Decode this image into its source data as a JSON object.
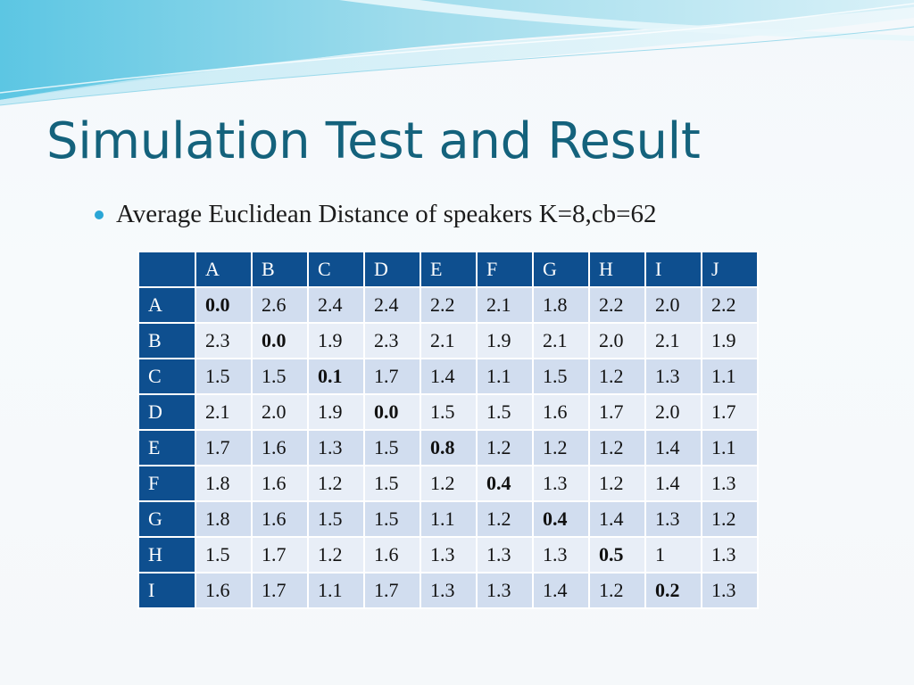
{
  "slide": {
    "title": "Simulation Test and Result",
    "bullet": "Average Euclidean Distance of speakers K=8,cb=62"
  },
  "table": {
    "corner": "",
    "columns": [
      "A",
      "B",
      "C",
      "D",
      "E",
      "F",
      "G",
      "H",
      "I",
      "J"
    ],
    "rows": [
      {
        "label": "A",
        "values": [
          "0.0",
          "2.6",
          "2.4",
          "2.4",
          "2.2",
          "2.1",
          "1.8",
          "2.2",
          "2.0",
          "2.2"
        ],
        "bold_index": 0
      },
      {
        "label": "B",
        "values": [
          "2.3",
          "0.0",
          "1.9",
          "2.3",
          "2.1",
          "1.9",
          "2.1",
          "2.0",
          "2.1",
          "1.9"
        ],
        "bold_index": 1
      },
      {
        "label": "C",
        "values": [
          "1.5",
          "1.5",
          "0.1",
          "1.7",
          "1.4",
          "1.1",
          "1.5",
          "1.2",
          "1.3",
          "1.1"
        ],
        "bold_index": 2
      },
      {
        "label": "D",
        "values": [
          "2.1",
          "2.0",
          "1.9",
          "0.0",
          "1.5",
          "1.5",
          "1.6",
          "1.7",
          "2.0",
          "1.7"
        ],
        "bold_index": 3
      },
      {
        "label": "E",
        "values": [
          "1.7",
          "1.6",
          "1.3",
          "1.5",
          "0.8",
          "1.2",
          "1.2",
          "1.2",
          "1.4",
          "1.1"
        ],
        "bold_index": 4
      },
      {
        "label": "F",
        "values": [
          "1.8",
          "1.6",
          "1.2",
          "1.5",
          "1.2",
          "0.4",
          "1.3",
          "1.2",
          "1.4",
          "1.3"
        ],
        "bold_index": 5
      },
      {
        "label": "G",
        "values": [
          "1.8",
          "1.6",
          "1.5",
          "1.5",
          "1.1",
          "1.2",
          "0.4",
          "1.4",
          "1.3",
          "1.2"
        ],
        "bold_index": 6
      },
      {
        "label": "H",
        "values": [
          "1.5",
          "1.7",
          "1.2",
          "1.6",
          "1.3",
          "1.3",
          "1.3",
          "0.5",
          "1",
          "1.3"
        ],
        "bold_index": 7
      },
      {
        "label": "I",
        "values": [
          "1.6",
          "1.7",
          "1.1",
          "1.7",
          "1.3",
          "1.3",
          "1.4",
          "1.2",
          "0.2",
          "1.3"
        ],
        "bold_index": 8
      }
    ]
  },
  "colors": {
    "title": "#14627c",
    "bullet": "#2aa6d6",
    "header_bg": "#0e4f8f",
    "row_odd": "#d1ddef",
    "row_even": "#e8eef7"
  }
}
